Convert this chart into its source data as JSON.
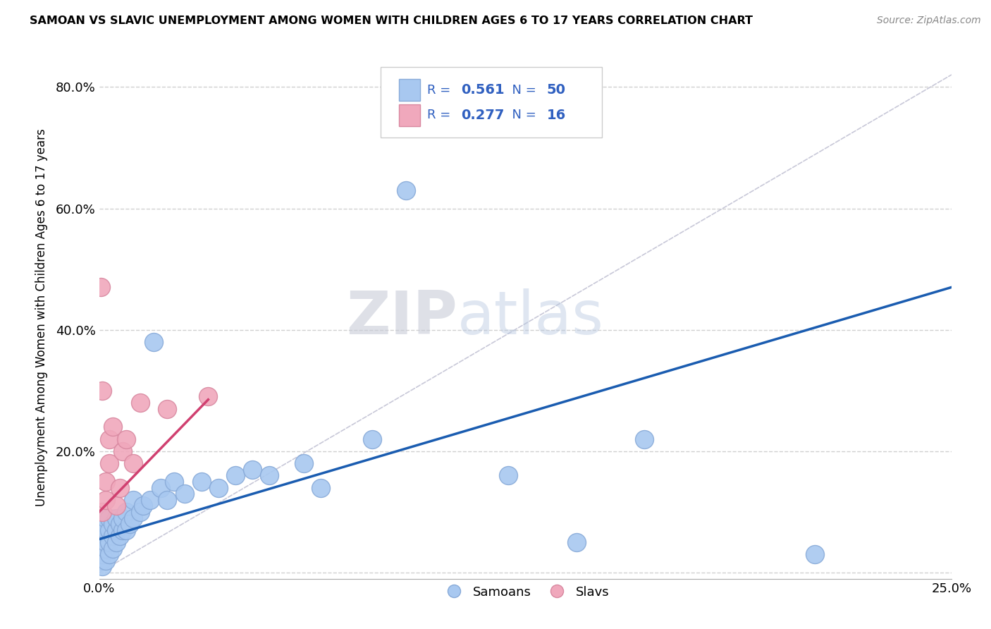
{
  "title": "SAMOAN VS SLAVIC UNEMPLOYMENT AMONG WOMEN WITH CHILDREN AGES 6 TO 17 YEARS CORRELATION CHART",
  "source": "Source: ZipAtlas.com",
  "ylabel_label": "Unemployment Among Women with Children Ages 6 to 17 years",
  "xlim": [
    0.0,
    0.25
  ],
  "ylim": [
    -0.01,
    0.85
  ],
  "yticks": [
    0.0,
    0.2,
    0.4,
    0.6,
    0.8
  ],
  "ytick_labels": [
    "",
    "20.0%",
    "40.0%",
    "60.0%",
    "80.0%"
  ],
  "xtick_positions": [
    0.0,
    0.25
  ],
  "xtick_labels": [
    "0.0%",
    "25.0%"
  ],
  "samoans_color": "#a8c8f0",
  "samoans_edge": "#88aad8",
  "slavs_color": "#f0a8bc",
  "slavs_edge": "#d888a0",
  "trend_samoan_color": "#1a5cb0",
  "trend_slavs_color": "#d04070",
  "diag_color": "#c8c8d8",
  "watermark_color": "#d0d8e8",
  "legend_text_color": "#3060c0",
  "legend_r2_color": "#d04070",
  "samoans_label": "Samoans",
  "slavs_label": "Slavs",
  "samoan_x": [
    0.0005,
    0.001,
    0.001,
    0.001,
    0.001,
    0.002,
    0.002,
    0.002,
    0.002,
    0.002,
    0.003,
    0.003,
    0.003,
    0.003,
    0.004,
    0.004,
    0.004,
    0.005,
    0.005,
    0.005,
    0.006,
    0.006,
    0.007,
    0.007,
    0.008,
    0.008,
    0.009,
    0.01,
    0.01,
    0.012,
    0.013,
    0.015,
    0.016,
    0.018,
    0.02,
    0.022,
    0.025,
    0.03,
    0.035,
    0.04,
    0.045,
    0.05,
    0.06,
    0.065,
    0.08,
    0.09,
    0.12,
    0.14,
    0.16,
    0.21
  ],
  "samoan_y": [
    0.02,
    0.01,
    0.03,
    0.05,
    0.07,
    0.02,
    0.04,
    0.05,
    0.07,
    0.09,
    0.03,
    0.05,
    0.07,
    0.09,
    0.04,
    0.06,
    0.08,
    0.05,
    0.07,
    0.09,
    0.06,
    0.08,
    0.07,
    0.09,
    0.07,
    0.1,
    0.08,
    0.09,
    0.12,
    0.1,
    0.11,
    0.12,
    0.38,
    0.14,
    0.12,
    0.15,
    0.13,
    0.15,
    0.14,
    0.16,
    0.17,
    0.16,
    0.18,
    0.14,
    0.22,
    0.63,
    0.16,
    0.05,
    0.22,
    0.03
  ],
  "slavs_x": [
    0.0005,
    0.001,
    0.001,
    0.002,
    0.002,
    0.003,
    0.003,
    0.004,
    0.005,
    0.006,
    0.007,
    0.008,
    0.01,
    0.012,
    0.02,
    0.032
  ],
  "slavs_y": [
    0.47,
    0.1,
    0.3,
    0.12,
    0.15,
    0.18,
    0.22,
    0.24,
    0.11,
    0.14,
    0.2,
    0.22,
    0.18,
    0.28,
    0.27,
    0.29
  ],
  "trend_samoan_x0": 0.0,
  "trend_samoan_y0": 0.055,
  "trend_samoan_x1": 0.25,
  "trend_samoan_y1": 0.47,
  "trend_slavs_x0": 0.0,
  "trend_slavs_y0": 0.1,
  "trend_slavs_x1": 0.032,
  "trend_slavs_y1": 0.285
}
